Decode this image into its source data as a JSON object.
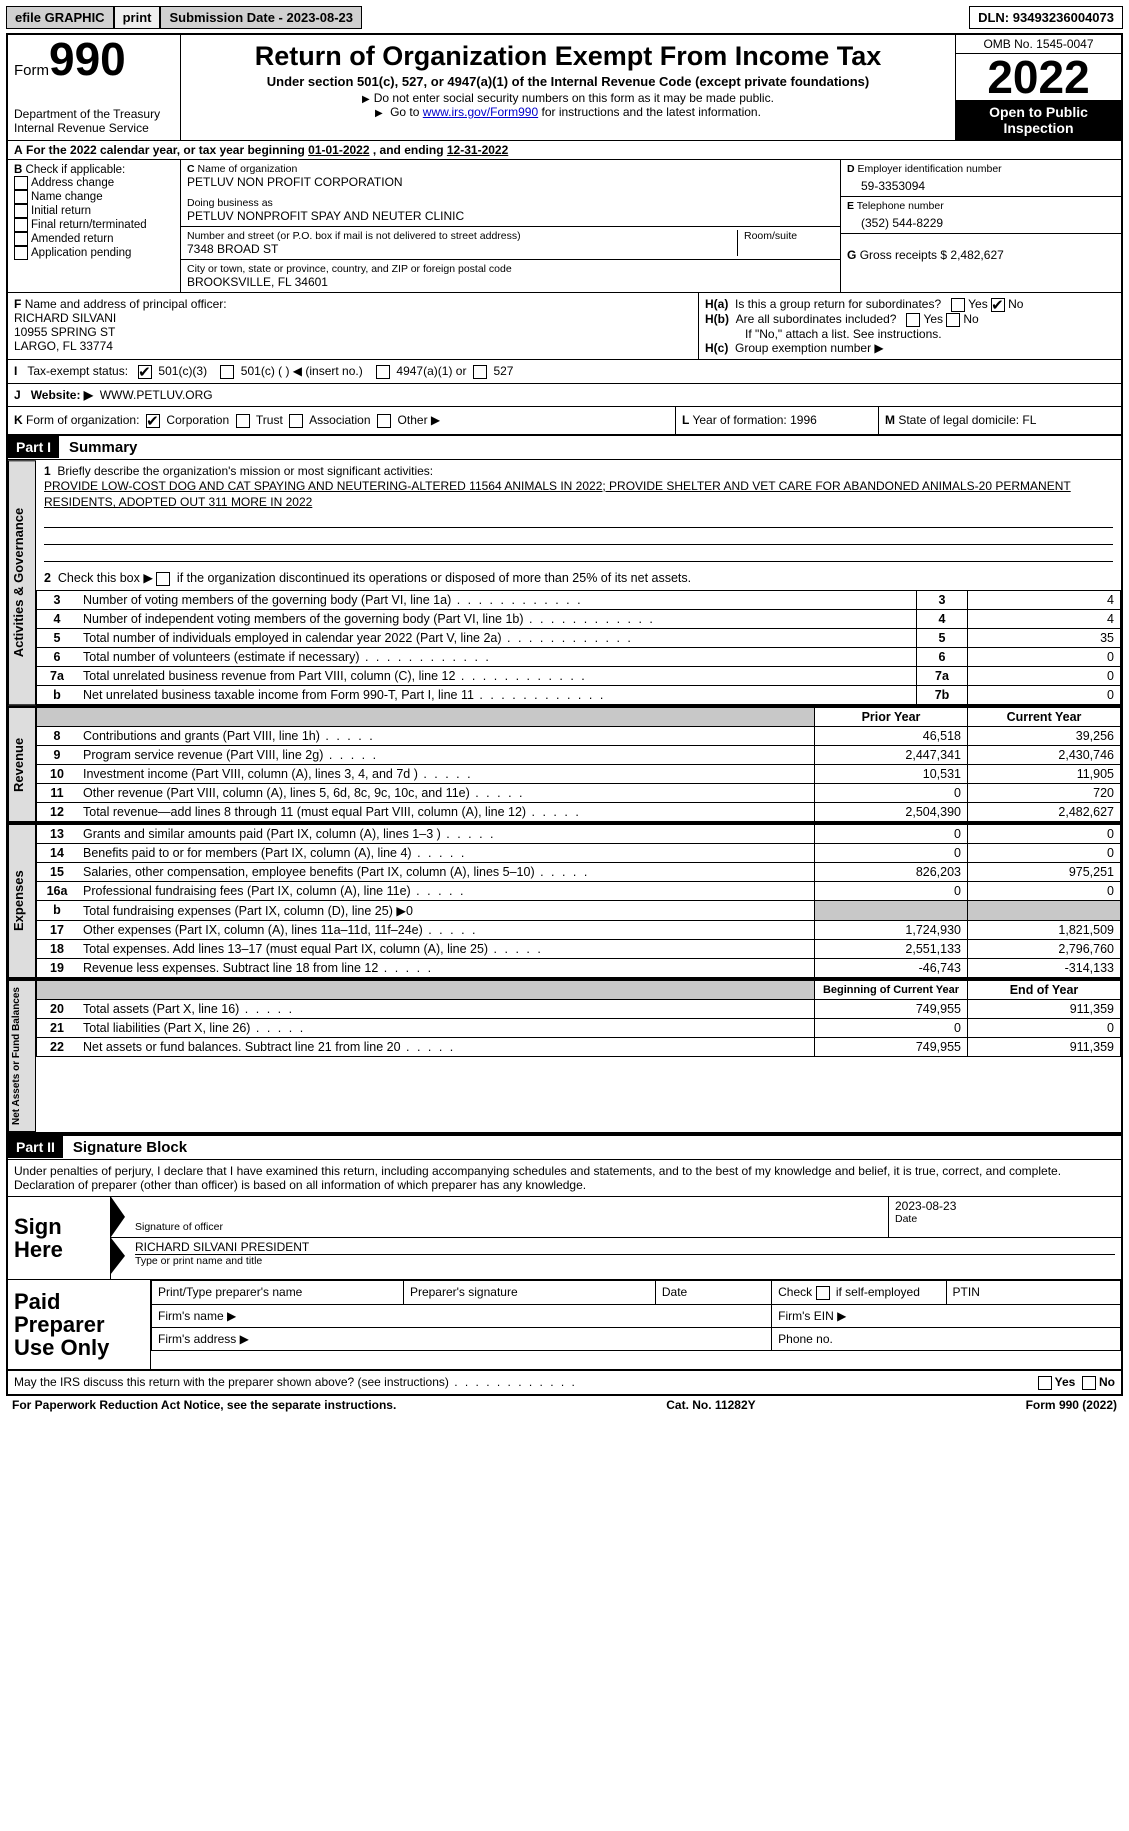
{
  "topbar": {
    "efile": "efile GRAPHIC",
    "print": "print",
    "subdate_label": "Submission Date - ",
    "subdate": "2023-08-23",
    "dln_label": "DLN: ",
    "dln": "93493236004073"
  },
  "header": {
    "form_prefix": "Form",
    "form_num": "990",
    "dept1": "Department of the Treasury",
    "dept2": "Internal Revenue Service",
    "title": "Return of Organization Exempt From Income Tax",
    "subtitle": "Under section 501(c), 527, or 4947(a)(1) of the Internal Revenue Code (except private foundations)",
    "note1": "Do not enter social security numbers on this form as it may be made public.",
    "note2_pre": "Go to ",
    "note2_link": "www.irs.gov/Form990",
    "note2_post": " for instructions and the latest information.",
    "omb": "OMB No. 1545-0047",
    "year": "2022",
    "inspection": "Open to Public Inspection"
  },
  "A": {
    "text": "For the 2022 calendar year, or tax year beginning ",
    "begin": "01-01-2022",
    "mid": " , and ending ",
    "end": "12-31-2022"
  },
  "B": {
    "title": "Check if applicable:",
    "opts": [
      "Address change",
      "Name change",
      "Initial return",
      "Final return/terminated",
      "Amended return",
      "Application pending"
    ]
  },
  "C": {
    "name_label": "Name of organization",
    "name": "PETLUV NON PROFIT CORPORATION",
    "dba_label": "Doing business as",
    "dba": "PETLUV NONPROFIT SPAY AND NEUTER CLINIC",
    "street_label": "Number and street (or P.O. box if mail is not delivered to street address)",
    "room_label": "Room/suite",
    "street": "7348 BROAD ST",
    "city_label": "City or town, state or province, country, and ZIP or foreign postal code",
    "city": "BROOKSVILLE, FL  34601"
  },
  "D": {
    "label": "Employer identification number",
    "value": "59-3353094"
  },
  "E": {
    "label": "Telephone number",
    "value": "(352) 544-8229"
  },
  "G": {
    "label": "Gross receipts $",
    "value": "2,482,627"
  },
  "F": {
    "label": "Name and address of principal officer:",
    "name": "RICHARD SILVANI",
    "street": "10955 SPRING ST",
    "city": "LARGO, FL  33774"
  },
  "H": {
    "a": "Is this a group return for subordinates?",
    "a_no_checked": true,
    "b": "Are all subordinates included?",
    "b_note": "If \"No,\" attach a list. See instructions.",
    "c": "Group exemption number ▶"
  },
  "I": {
    "label": "Tax-exempt status:",
    "c3": "501(c)(3)",
    "c": "501(c) (   ) ◀ (insert no.)",
    "a1": "4947(a)(1) or",
    "s527": "527"
  },
  "J": {
    "label": "Website: ▶",
    "value": "WWW.PETLUV.ORG"
  },
  "K": {
    "label": "Form of organization:",
    "opts": [
      "Corporation",
      "Trust",
      "Association",
      "Other ▶"
    ]
  },
  "L": {
    "label": "Year of formation:",
    "value": "1996"
  },
  "M": {
    "label": "State of legal domicile:",
    "value": "FL"
  },
  "part1": {
    "title": "Part I",
    "name": "Summary",
    "line1_label": "Briefly describe the organization's mission or most significant activities:",
    "mission": "PROVIDE LOW-COST DOG AND CAT SPAYING AND NEUTERING-ALTERED 11564 ANIMALS IN 2022; PROVIDE SHELTER AND VET CARE FOR ABANDONED ANIMALS-20 PERMANENT RESIDENTS, ADOPTED OUT 311 MORE IN 2022",
    "line2": "Check this box ▶      if the organization discontinued its operations or disposed of more than 25% of its net assets.",
    "rows_ag": [
      {
        "n": "3",
        "d": "Number of voting members of the governing body (Part VI, line 1a)",
        "box": "3",
        "v": "4"
      },
      {
        "n": "4",
        "d": "Number of independent voting members of the governing body (Part VI, line 1b)",
        "box": "4",
        "v": "4"
      },
      {
        "n": "5",
        "d": "Total number of individuals employed in calendar year 2022 (Part V, line 2a)",
        "box": "5",
        "v": "35"
      },
      {
        "n": "6",
        "d": "Total number of volunteers (estimate if necessary)",
        "box": "6",
        "v": "0"
      },
      {
        "n": "7a",
        "d": "Total unrelated business revenue from Part VIII, column (C), line 12",
        "box": "7a",
        "v": "0"
      },
      {
        "n": "b",
        "d": "Net unrelated business taxable income from Form 990-T, Part I, line 11",
        "box": "7b",
        "v": "0"
      }
    ],
    "head_prior": "Prior Year",
    "head_curr": "Current Year",
    "revenue": [
      {
        "n": "8",
        "d": "Contributions and grants (Part VIII, line 1h)",
        "p": "46,518",
        "c": "39,256"
      },
      {
        "n": "9",
        "d": "Program service revenue (Part VIII, line 2g)",
        "p": "2,447,341",
        "c": "2,430,746"
      },
      {
        "n": "10",
        "d": "Investment income (Part VIII, column (A), lines 3, 4, and 7d )",
        "p": "10,531",
        "c": "11,905"
      },
      {
        "n": "11",
        "d": "Other revenue (Part VIII, column (A), lines 5, 6d, 8c, 9c, 10c, and 11e)",
        "p": "0",
        "c": "720"
      },
      {
        "n": "12",
        "d": "Total revenue—add lines 8 through 11 (must equal Part VIII, column (A), line 12)",
        "p": "2,504,390",
        "c": "2,482,627"
      }
    ],
    "expenses": [
      {
        "n": "13",
        "d": "Grants and similar amounts paid (Part IX, column (A), lines 1–3 )",
        "p": "0",
        "c": "0"
      },
      {
        "n": "14",
        "d": "Benefits paid to or for members (Part IX, column (A), line 4)",
        "p": "0",
        "c": "0"
      },
      {
        "n": "15",
        "d": "Salaries, other compensation, employee benefits (Part IX, column (A), lines 5–10)",
        "p": "826,203",
        "c": "975,251"
      },
      {
        "n": "16a",
        "d": "Professional fundraising fees (Part IX, column (A), line 11e)",
        "p": "0",
        "c": "0"
      },
      {
        "n": "b",
        "d": "Total fundraising expenses (Part IX, column (D), line 25) ▶0",
        "p": "",
        "c": "",
        "shade": true
      },
      {
        "n": "17",
        "d": "Other expenses (Part IX, column (A), lines 11a–11d, 11f–24e)",
        "p": "1,724,930",
        "c": "1,821,509"
      },
      {
        "n": "18",
        "d": "Total expenses. Add lines 13–17 (must equal Part IX, column (A), line 25)",
        "p": "2,551,133",
        "c": "2,796,760"
      },
      {
        "n": "19",
        "d": "Revenue less expenses. Subtract line 18 from line 12",
        "p": "-46,743",
        "c": "-314,133"
      }
    ],
    "head_beg": "Beginning of Current Year",
    "head_end": "End of Year",
    "netassets": [
      {
        "n": "20",
        "d": "Total assets (Part X, line 16)",
        "p": "749,955",
        "c": "911,359"
      },
      {
        "n": "21",
        "d": "Total liabilities (Part X, line 26)",
        "p": "0",
        "c": "0"
      },
      {
        "n": "22",
        "d": "Net assets or fund balances. Subtract line 21 from line 20",
        "p": "749,955",
        "c": "911,359"
      }
    ],
    "tab_ag": "Activities & Governance",
    "tab_rev": "Revenue",
    "tab_exp": "Expenses",
    "tab_net": "Net Assets or Fund Balances"
  },
  "part2": {
    "title": "Part II",
    "name": "Signature Block",
    "penalty": "Under penalties of perjury, I declare that I have examined this return, including accompanying schedules and statements, and to the best of my knowledge and belief, it is true, correct, and complete. Declaration of preparer (other than officer) is based on all information of which preparer has any knowledge.",
    "sign_here": "Sign Here",
    "sig_of_officer": "Signature of officer",
    "sig_date": "2023-08-23",
    "date_label": "Date",
    "officer_name": "RICHARD SILVANI  PRESIDENT",
    "type_name": "Type or print name and title",
    "paid": "Paid Preparer Use Only",
    "prep_name": "Print/Type preparer's name",
    "prep_sig": "Preparer's signature",
    "prep_date": "Date",
    "check_if": "Check       if self-employed",
    "ptin": "PTIN",
    "firm_name": "Firm's name   ▶",
    "firm_ein": "Firm's EIN ▶",
    "firm_addr": "Firm's address ▶",
    "phone": "Phone no."
  },
  "footer": {
    "discuss": "May the IRS discuss this return with the preparer shown above? (see instructions)",
    "paperwork": "For Paperwork Reduction Act Notice, see the separate instructions.",
    "cat": "Cat. No. 11282Y",
    "formno": "Form 990 (2022)"
  },
  "colors": {
    "black": "#000000",
    "grey_head": "#d0d0d0",
    "grey_btn": "#eeeeee",
    "grey_vtab": "#dddddd",
    "grey_shade": "#c8c8c8",
    "link": "#0000cc"
  }
}
